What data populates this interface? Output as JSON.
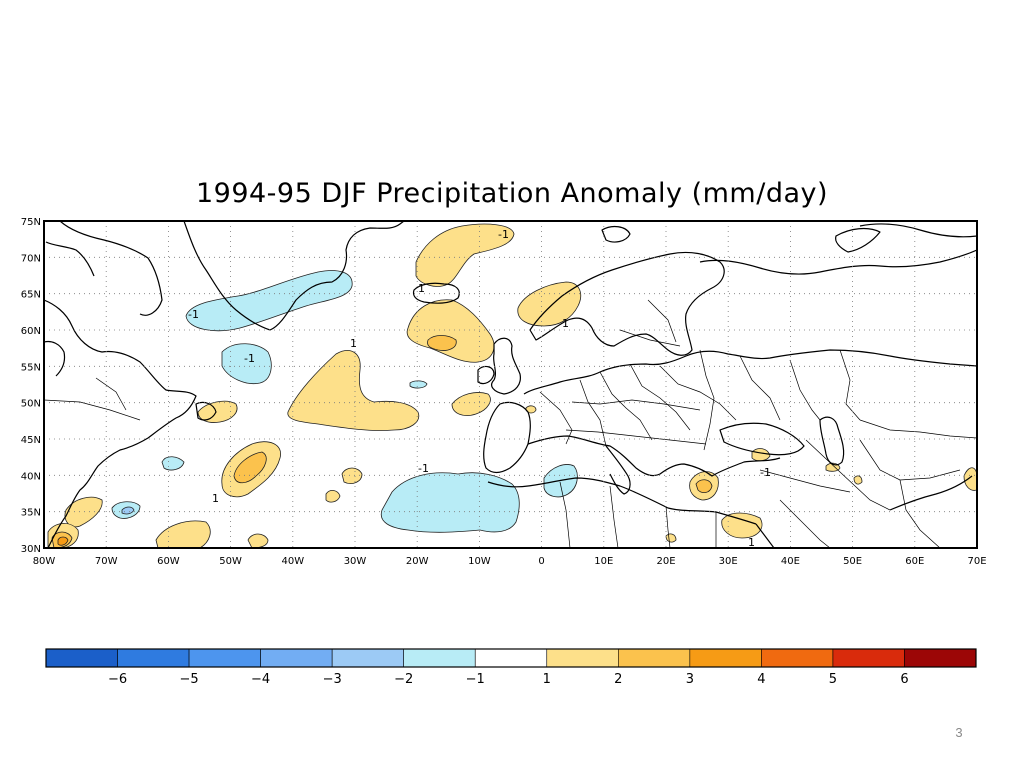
{
  "slide": {
    "title": "1994-95 DJF Precipitation Anomaly (mm/day)",
    "number": "3"
  },
  "map": {
    "lat_labels": [
      "75N",
      "70N",
      "65N",
      "60N",
      "55N",
      "50N",
      "45N",
      "40N",
      "35N",
      "30N"
    ],
    "lon_labels": [
      "80W",
      "70W",
      "60W",
      "50W",
      "40W",
      "30W",
      "20W",
      "10W",
      "0",
      "10E",
      "20E",
      "30E",
      "40E",
      "50E",
      "60E",
      "70E"
    ],
    "extent": {
      "lon_min": -80,
      "lon_max": 70,
      "lat_min": 30,
      "lat_max": 75
    },
    "contour_labels": [
      "-1",
      "-1",
      "1",
      "1",
      "-1",
      "1",
      "1",
      "-1",
      "-1",
      "1"
    ]
  },
  "colorbar": {
    "colors": [
      "#1b5fc9",
      "#2f7be0",
      "#4d95ee",
      "#72adf3",
      "#9ccaf5",
      "#b8ecf6",
      "#ffffff",
      "#fde08a",
      "#fbc24d",
      "#f69b15",
      "#f06a10",
      "#d92b0c",
      "#9c0606"
    ],
    "tick_labels": [
      "-6",
      "-5",
      "-4",
      "-3",
      "-2",
      "-1",
      "1",
      "2",
      "3",
      "4",
      "5",
      "6"
    ]
  },
  "legend_levels": {
    "negative_colors": {
      "-1": "#b8ecf6",
      "-2": "#9ccaf5"
    },
    "positive_colors": {
      "1": "#fde08a",
      "2": "#fbc24d",
      "3": "#f69b15"
    }
  }
}
